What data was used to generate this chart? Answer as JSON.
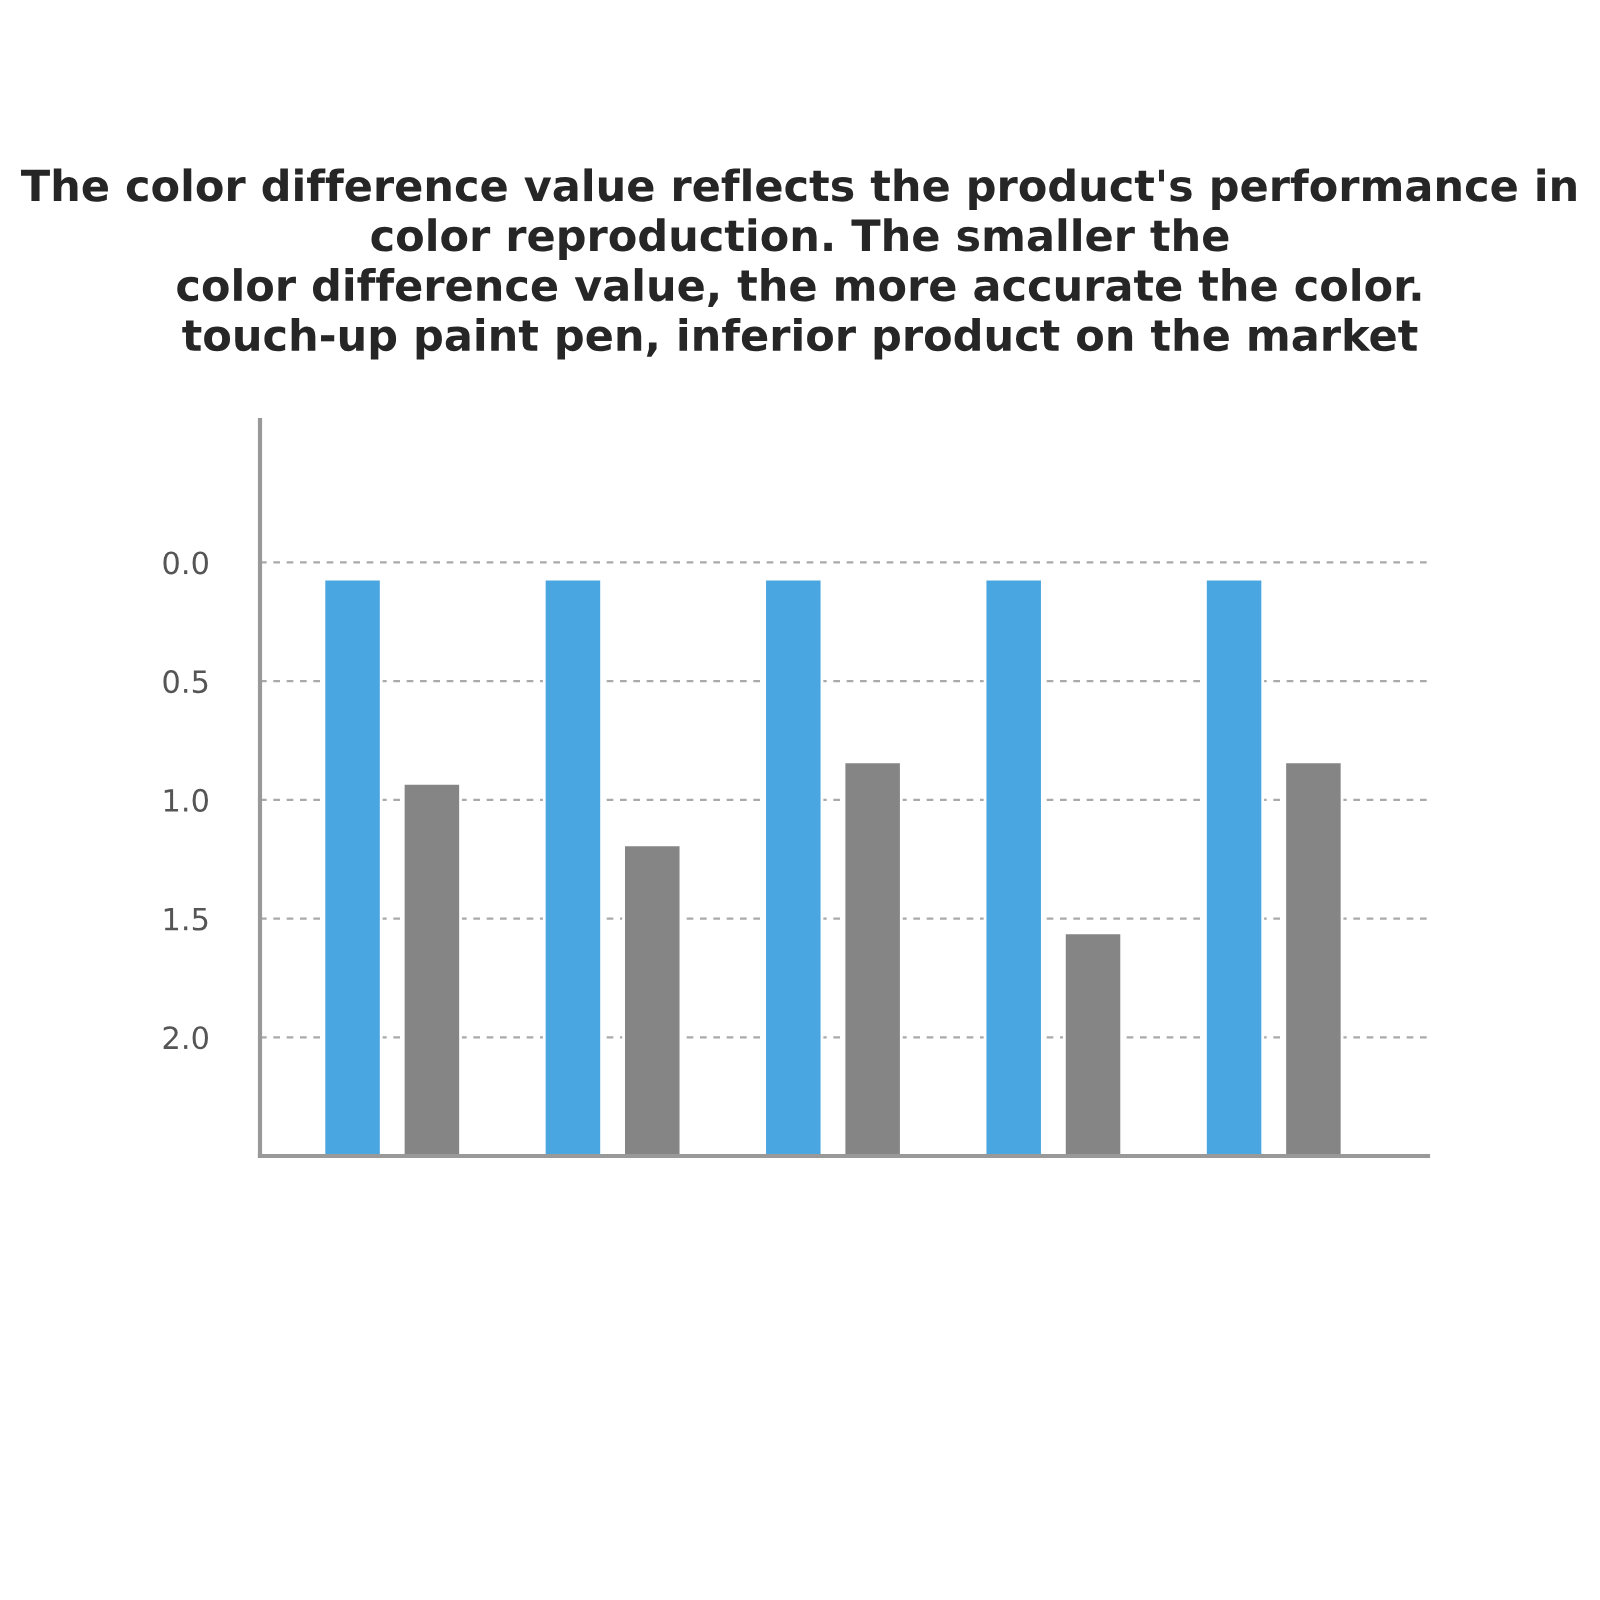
{
  "chart_data": {
    "type": "bar",
    "title": "The color difference value reflects the product's performance in\ncolor reproduction. The smaller the\ncolor difference value, the more accurate the color.\ntouch-up paint pen, inferior product on the market",
    "categories": [
      null,
      null,
      null,
      null,
      null
    ],
    "series": [
      {
        "color": "#4aa6e0",
        "base": [
          2.5,
          2.5,
          2.5,
          2.5,
          2.5
        ],
        "values": [
          -2.43,
          -2.43,
          -2.43,
          -2.43,
          -2.43
        ]
      },
      {
        "color": "#858585",
        "base": [
          2.5,
          2.5,
          2.5,
          2.5,
          2.5
        ],
        "values": [
          -1.57,
          -1.31,
          -1.66,
          -0.94,
          -1.66
        ]
      }
    ],
    "ylim": [
      2.5,
      -0.6
    ],
    "yticks": [
      {
        "value": 0,
        "label": "0.0"
      },
      {
        "value": 0.5,
        "label": "0.5"
      },
      {
        "value": 1,
        "label": "1.0"
      },
      {
        "value": 1.5,
        "label": "1.5"
      },
      {
        "value": 2,
        "label": "2.0"
      }
    ],
    "grid": "y",
    "tick_labels": "y"
  }
}
